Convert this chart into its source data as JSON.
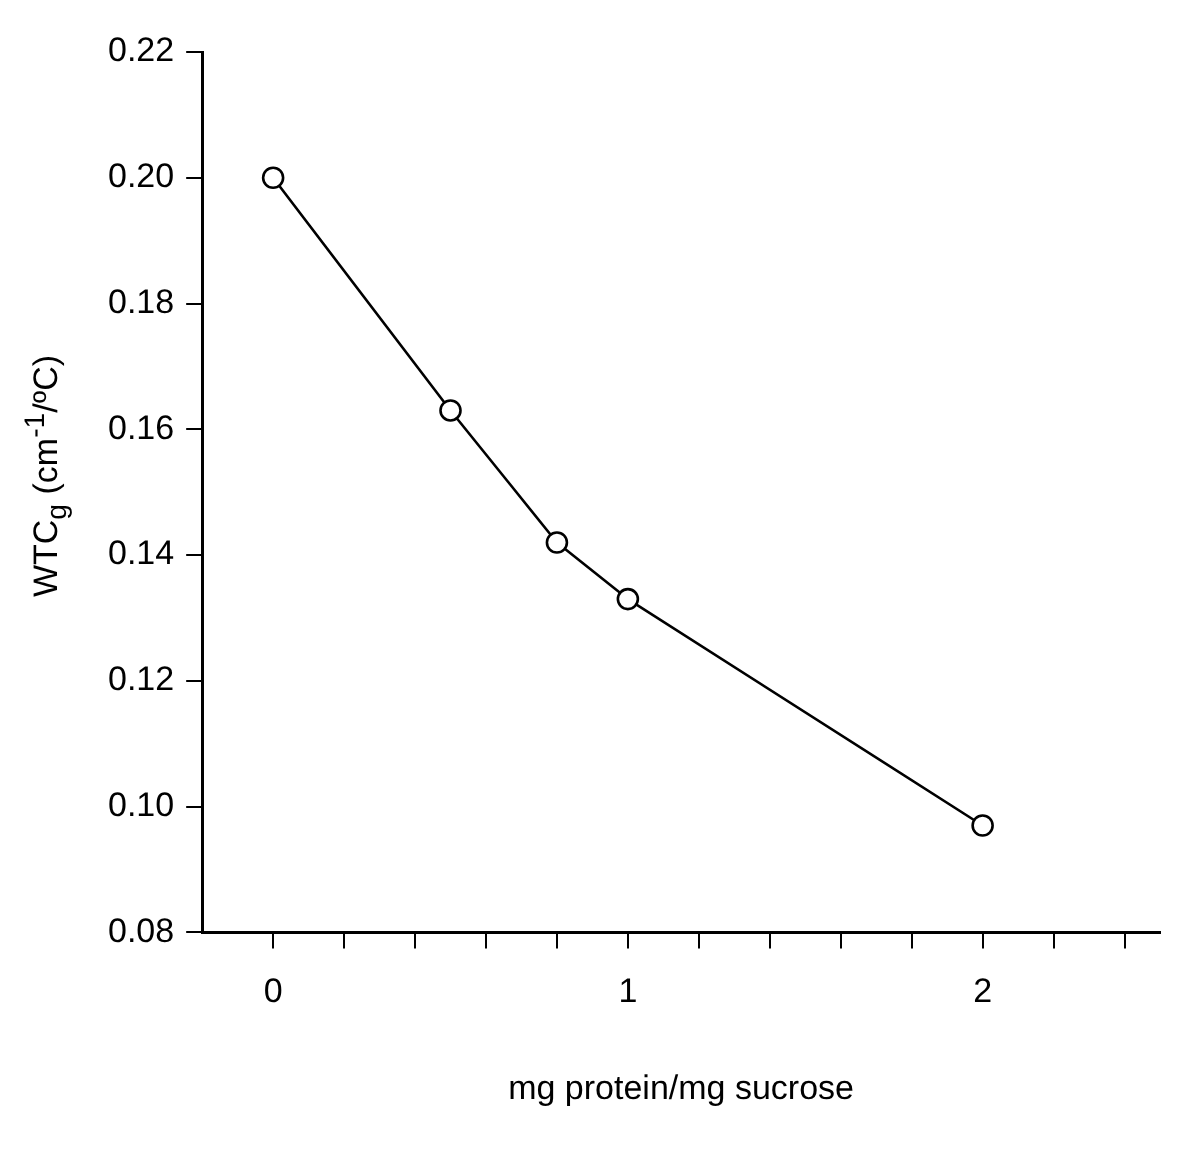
{
  "chart_data": {
    "type": "line",
    "xlabel": "mg protein/mg sucrose",
    "ylabel": "WTC$_{g}$ (cm$^{-1}$/ºC)",
    "x": [
      0,
      0.5,
      0.8,
      1,
      2
    ],
    "series": [
      {
        "color": "#000000",
        "values": [
          0.2,
          0.163,
          0.142,
          0.133,
          0.097
        ]
      }
    ],
    "xlim": [
      -0.2,
      2.5
    ],
    "xticks": [
      0,
      {
        "value": 0.2,
        "label": null
      },
      {
        "value": 0.4,
        "label": null
      },
      {
        "value": 0.6,
        "label": null
      },
      {
        "value": 0.8,
        "label": null
      },
      1,
      {
        "value": 1.2,
        "label": null
      },
      {
        "value": 1.4,
        "label": null
      },
      {
        "value": 1.6,
        "label": null
      },
      {
        "value": 1.8,
        "label": null
      },
      2,
      {
        "value": 2.2,
        "label": null
      },
      {
        "value": 2.4,
        "label": null
      }
    ],
    "ylim": [
      0.08,
      0.22
    ],
    "yticks": [
      0.08,
      {
        "value": 0.1,
        "label": "0.10"
      },
      0.12,
      0.14,
      0.16,
      0.18,
      {
        "value": 0.2,
        "label": "0.20"
      },
      0.22
    ],
    "marker": "circle",
    "line_style": "solid",
    "grid": false,
    "legend": false
  }
}
